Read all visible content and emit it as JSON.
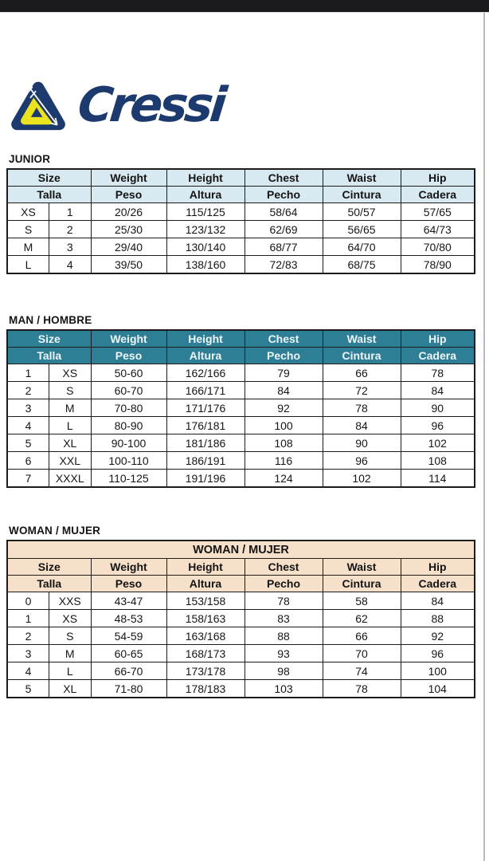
{
  "colors": {
    "top_bar": "#1b1b1d",
    "border": "#1c1c1c",
    "junior_header_bg": "#d8e9f1",
    "man_header_bg": "#2e7e96",
    "man_header_text": "#eef6f8",
    "woman_header_bg": "#f7e0c9",
    "logo_navy": "#1c3a6e",
    "logo_yellow": "#ece31f",
    "page_edge": "#b8b8b8"
  },
  "logo": {
    "wordmark": "Cressi",
    "mark": "cressi-triangle-harpoon"
  },
  "tables": {
    "junior": {
      "title": "JUNIOR",
      "header_en": [
        "Size",
        "Weight",
        "Height",
        "Chest",
        "Waist",
        "Hip"
      ],
      "header_es": [
        "Talla",
        "Peso",
        "Altura",
        "Pecho",
        "Cintura",
        "Cadera"
      ],
      "rows": [
        [
          "XS",
          "1",
          "20/26",
          "115/125",
          "58/64",
          "50/57",
          "57/65"
        ],
        [
          "S",
          "2",
          "25/30",
          "123/132",
          "62/69",
          "56/65",
          "64/73"
        ],
        [
          "M",
          "3",
          "29/40",
          "130/140",
          "68/77",
          "64/70",
          "70/80"
        ],
        [
          "L",
          "4",
          "39/50",
          "138/160",
          "72/83",
          "68/75",
          "78/90"
        ]
      ]
    },
    "man": {
      "title": "MAN / HOMBRE",
      "header_en": [
        "Size",
        "Weight",
        "Height",
        "Chest",
        "Waist",
        "Hip"
      ],
      "header_es": [
        "Talla",
        "Peso",
        "Altura",
        "Pecho",
        "Cintura",
        "Cadera"
      ],
      "rows": [
        [
          "1",
          "XS",
          "50-60",
          "162/166",
          "79",
          "66",
          "78"
        ],
        [
          "2",
          "S",
          "60-70",
          "166/171",
          "84",
          "72",
          "84"
        ],
        [
          "3",
          "M",
          "70-80",
          "171/176",
          "92",
          "78",
          "90"
        ],
        [
          "4",
          "L",
          "80-90",
          "176/181",
          "100",
          "84",
          "96"
        ],
        [
          "5",
          "XL",
          "90-100",
          "181/186",
          "108",
          "90",
          "102"
        ],
        [
          "6",
          "XXL",
          "100-110",
          "186/191",
          "116",
          "96",
          "108"
        ],
        [
          "7",
          "XXXL",
          "110-125",
          "191/196",
          "124",
          "102",
          "114"
        ]
      ]
    },
    "woman": {
      "title": "WOMAN / MUJER",
      "banner": "WOMAN / MUJER",
      "header_en": [
        "Size",
        "Weight",
        "Height",
        "Chest",
        "Waist",
        "Hip"
      ],
      "header_es": [
        "Talla",
        "Peso",
        "Altura",
        "Pecho",
        "Cintura",
        "Cadera"
      ],
      "rows": [
        [
          "0",
          "XXS",
          "43-47",
          "153/158",
          "78",
          "58",
          "84"
        ],
        [
          "1",
          "XS",
          "48-53",
          "158/163",
          "83",
          "62",
          "88"
        ],
        [
          "2",
          "S",
          "54-59",
          "163/168",
          "88",
          "66",
          "92"
        ],
        [
          "3",
          "M",
          "60-65",
          "168/173",
          "93",
          "70",
          "96"
        ],
        [
          "4",
          "L",
          "66-70",
          "173/178",
          "98",
          "74",
          "100"
        ],
        [
          "5",
          "XL",
          "71-80",
          "178/183",
          "103",
          "78",
          "104"
        ]
      ]
    }
  }
}
